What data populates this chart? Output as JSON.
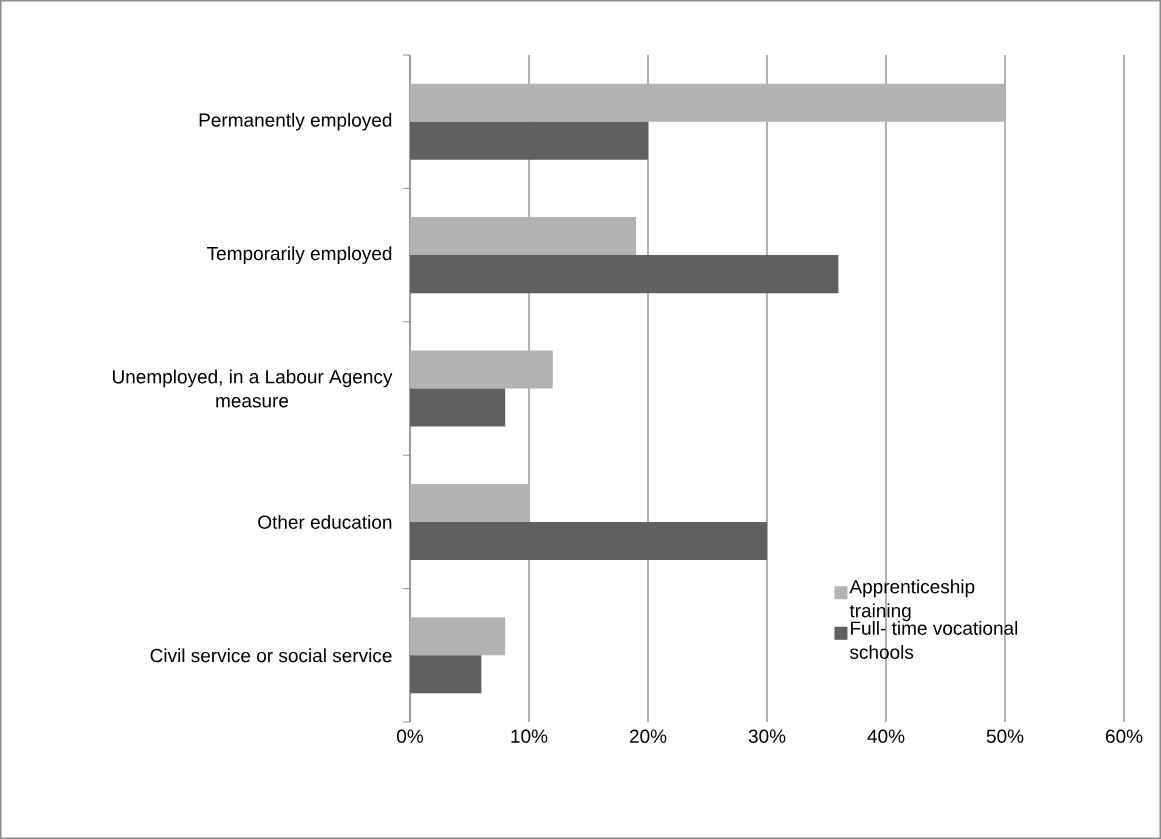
{
  "chart_data": {
    "type": "bar",
    "orientation": "horizontal",
    "categories": [
      "Permanently employed",
      "Temporarily employed",
      "Unemployed, in a Labour Agency measure",
      "Other education",
      "Civil service or social service"
    ],
    "series": [
      {
        "name": "Apprenticeship training",
        "color": "#b3b3b3",
        "values": [
          50,
          19,
          12,
          10,
          8
        ]
      },
      {
        "name": "Full- time vocational schools",
        "color": "#606060",
        "values": [
          20,
          36,
          8,
          30,
          6
        ]
      }
    ],
    "xlim": [
      0,
      60
    ],
    "xticks": [
      {
        "value": 0,
        "label": "0%"
      },
      {
        "value": 10,
        "label": "10%"
      },
      {
        "value": 20,
        "label": "20%"
      },
      {
        "value": 30,
        "label": "30%"
      },
      {
        "value": 40,
        "label": "40%"
      },
      {
        "value": 50,
        "label": "50%"
      },
      {
        "value": 60,
        "label": "60%"
      }
    ],
    "grid": "x",
    "legend": "bottom right"
  }
}
